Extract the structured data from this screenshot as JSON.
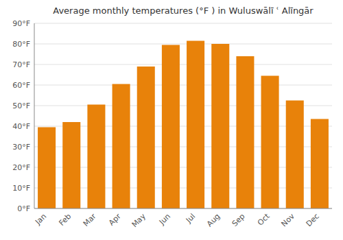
{
  "chart_data": {
    "type": "bar",
    "title": "Average monthly temperatures (°F ) in Wuluswālī ʿ Alīngār",
    "categories": [
      "Jan",
      "Feb",
      "Mar",
      "Apr",
      "May",
      "Jun",
      "Jul",
      "Aug",
      "Sep",
      "Oct",
      "Nov",
      "Dec"
    ],
    "values": [
      39.5,
      42.0,
      50.5,
      60.5,
      69.0,
      79.5,
      81.5,
      80.0,
      74.0,
      64.5,
      52.5,
      43.5
    ],
    "color": "#E8820A",
    "ylim": [
      0,
      90
    ],
    "yticks": [
      {
        "value": 0,
        "label": "0°F"
      },
      {
        "value": 10,
        "label": "10°F"
      },
      {
        "value": 20,
        "label": "20°F"
      },
      {
        "value": 30,
        "label": "30°F"
      },
      {
        "value": 40,
        "label": "40°F"
      },
      {
        "value": 50,
        "label": "50°F"
      },
      {
        "value": 60,
        "label": "60°F"
      },
      {
        "value": 70,
        "label": "70°F"
      },
      {
        "value": 80,
        "label": "80°F"
      },
      {
        "value": 90,
        "label": "90°F"
      }
    ],
    "grid": true
  }
}
